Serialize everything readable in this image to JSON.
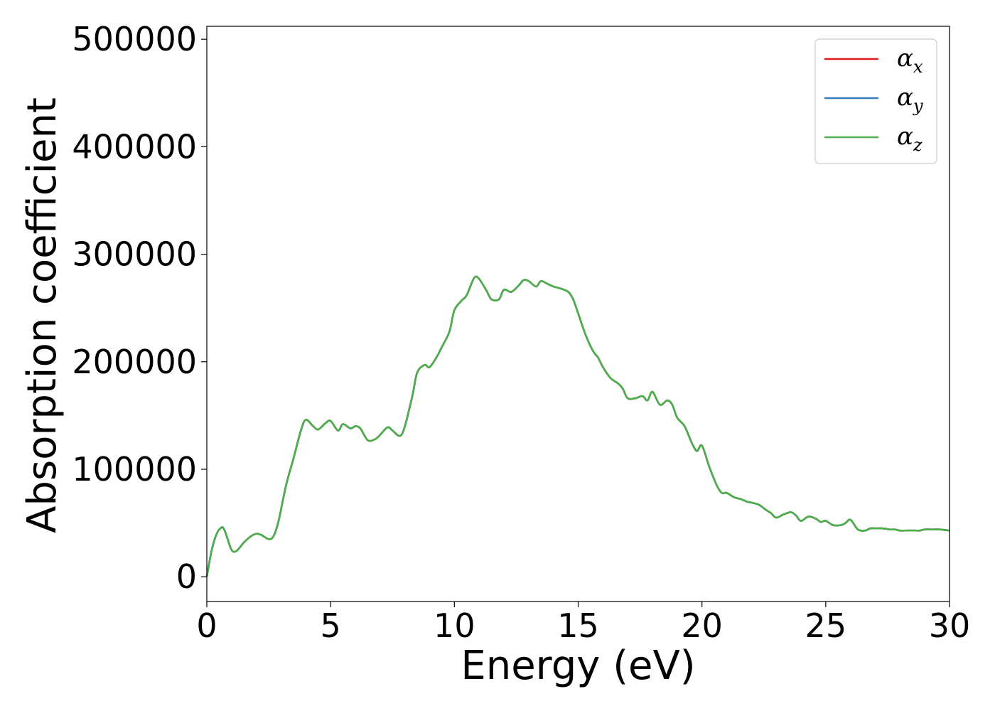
{
  "chart_data": {
    "type": "line",
    "title": "",
    "xlabel": "Energy (eV)",
    "ylabel": "Absorption coefficient",
    "xlim": [
      0,
      30
    ],
    "ylim": [
      -23000,
      512000
    ],
    "xticks": [
      0,
      5,
      10,
      15,
      20,
      25,
      30
    ],
    "yticks": [
      0,
      100000,
      200000,
      300000,
      400000,
      500000
    ],
    "grid": false,
    "legend_position": "upper right",
    "series": [
      {
        "name": "α_x",
        "name_base": "α",
        "name_sub": "x",
        "color": "#e41a1c",
        "x": [
          0,
          0.2,
          0.4,
          0.6,
          0.7,
          0.8,
          1.0,
          1.2,
          1.5,
          1.8,
          2.0,
          2.2,
          2.5,
          2.7,
          2.9,
          3.2,
          3.5,
          3.8,
          4.0,
          4.3,
          4.5,
          4.8,
          5.0,
          5.3,
          5.5,
          5.8,
          6.0,
          6.2,
          6.5,
          6.8,
          7.0,
          7.3,
          7.5,
          7.8,
          8.0,
          8.3,
          8.5,
          8.8,
          9.0,
          9.3,
          9.5,
          9.8,
          10.0,
          10.3,
          10.5,
          10.8,
          11.0,
          11.3,
          11.5,
          11.8,
          12.0,
          12.3,
          12.6,
          12.8,
          13.0,
          13.3,
          13.5,
          13.8,
          14.0,
          14.3,
          14.6,
          14.8,
          15.0,
          15.3,
          15.6,
          15.8,
          16.0,
          16.3,
          16.6,
          16.8,
          17.0,
          17.3,
          17.6,
          17.8,
          18.0,
          18.3,
          18.6,
          18.8,
          19.0,
          19.3,
          19.6,
          19.8,
          20.0,
          20.3,
          20.6,
          20.8,
          21.0,
          21.3,
          21.6,
          21.8,
          22.0,
          22.3,
          22.6,
          22.8,
          23.0,
          23.3,
          23.6,
          23.8,
          24.0,
          24.3,
          24.6,
          24.8,
          25.0,
          25.3,
          25.6,
          25.8,
          26.0,
          26.3,
          26.6,
          26.8,
          27.0,
          27.3,
          27.6,
          27.8,
          28.0,
          28.3,
          28.6,
          28.8,
          29.0,
          29.3,
          29.6,
          30.0
        ],
        "y": [
          0,
          25000,
          40000,
          46000,
          44000,
          38000,
          25000,
          24000,
          32000,
          38000,
          40000,
          39000,
          35000,
          38000,
          52000,
          85000,
          110000,
          136000,
          146000,
          140000,
          137000,
          143000,
          145000,
          136000,
          142000,
          138000,
          140000,
          138000,
          127000,
          128000,
          132000,
          139000,
          136000,
          131000,
          140000,
          168000,
          190000,
          197000,
          195000,
          205000,
          214000,
          228000,
          248000,
          257000,
          262000,
          278000,
          277000,
          266000,
          258000,
          258000,
          267000,
          265000,
          271000,
          276000,
          275000,
          270000,
          275000,
          272000,
          270000,
          268000,
          265000,
          258000,
          245000,
          225000,
          210000,
          204000,
          195000,
          185000,
          180000,
          175000,
          166000,
          166000,
          168000,
          164000,
          172000,
          160000,
          164000,
          160000,
          148000,
          140000,
          124000,
          117000,
          122000,
          102000,
          85000,
          78000,
          78000,
          74000,
          72000,
          70000,
          69000,
          67000,
          62000,
          59000,
          55000,
          58000,
          60000,
          57000,
          52000,
          56000,
          54000,
          51000,
          52000,
          48000,
          48000,
          50000,
          53000,
          44000,
          43000,
          45000,
          45000,
          45000,
          44000,
          44000,
          43000,
          43000,
          43000,
          43000,
          44000,
          44000,
          44000,
          43000
        ],
        "note": "identical to alpha_z (hidden underneath)"
      },
      {
        "name": "α_y",
        "name_base": "α",
        "name_sub": "y",
        "color": "#377eb8",
        "same_as": "α_x"
      },
      {
        "name": "α_z",
        "name_base": "α",
        "name_sub": "z",
        "color": "#4daf4a",
        "same_as": "α_x"
      }
    ]
  }
}
